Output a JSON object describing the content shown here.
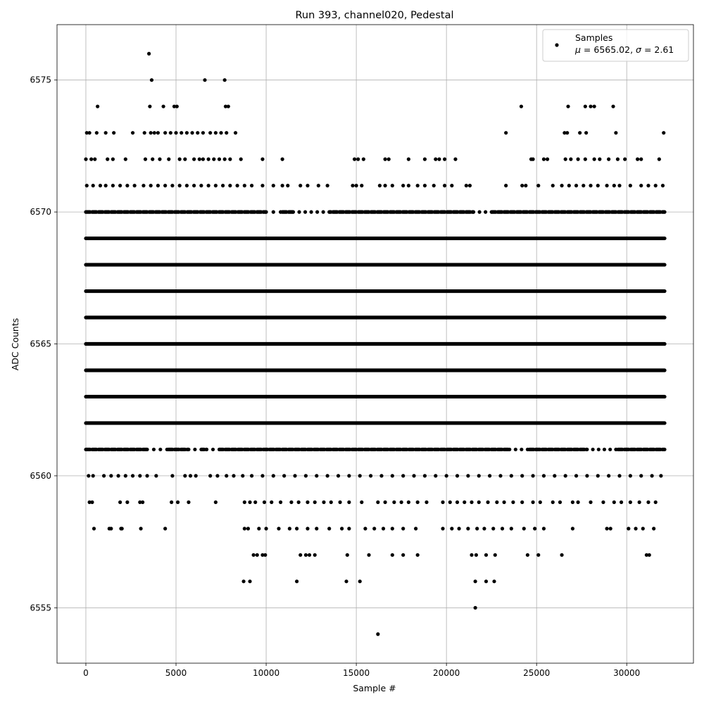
{
  "chart_data": {
    "type": "scatter",
    "title": "Run 393, channel020, Pedestal",
    "xlabel": "Sample #",
    "ylabel": "ADC Counts",
    "xlim": [
      -1600,
      33700
    ],
    "ylim": [
      6552.9,
      6577.1
    ],
    "x_ticks": [
      0,
      5000,
      10000,
      15000,
      20000,
      25000,
      30000
    ],
    "y_ticks": [
      6555,
      6560,
      6565,
      6570,
      6575
    ],
    "grid": true,
    "legend": {
      "placement": "top-right",
      "entries": [
        {
          "line1": "Samples",
          "mu_label": "μ",
          "mu_value": "6565.02",
          "sigma_label": "σ",
          "sigma_value": "2.61"
        }
      ]
    },
    "marker_color": "#000000",
    "sample_range": [
      0,
      32100
    ],
    "dense_levels": [
      {
        "y": 6562,
        "x_start": 0,
        "x_end": 32100
      },
      {
        "y": 6563,
        "x_start": 0,
        "x_end": 32100
      },
      {
        "y": 6564,
        "x_start": 0,
        "x_end": 32100
      },
      {
        "y": 6565,
        "x_start": 0,
        "x_end": 32100
      },
      {
        "y": 6566,
        "x_start": 0,
        "x_end": 32100
      },
      {
        "y": 6567,
        "x_start": 0,
        "x_end": 32100
      },
      {
        "y": 6568,
        "x_start": 0,
        "x_end": 32100
      },
      {
        "y": 6569,
        "x_start": 0,
        "x_end": 32100
      }
    ],
    "medium_levels": [
      {
        "y": 6561,
        "x_start": 0,
        "x_end": 32100,
        "gap_segments": [
          [
            3400,
            4500
          ],
          [
            5700,
            6400
          ],
          [
            6700,
            7400
          ],
          [
            23500,
            24500
          ],
          [
            27800,
            29400
          ]
        ]
      },
      {
        "y": 6570,
        "x_start": 0,
        "x_end": 32100,
        "gap_segments": [
          [
            10000,
            10800
          ],
          [
            11500,
            13500
          ],
          [
            21500,
            22500
          ]
        ]
      }
    ],
    "sparse_points": [
      [
        3500,
        6576
      ],
      [
        3650,
        6575
      ],
      [
        6600,
        6575
      ],
      [
        7700,
        6575
      ],
      [
        650,
        6574
      ],
      [
        3550,
        6574
      ],
      [
        4300,
        6574
      ],
      [
        4900,
        6574
      ],
      [
        5050,
        6574
      ],
      [
        7750,
        6574
      ],
      [
        7900,
        6574
      ],
      [
        24150,
        6574
      ],
      [
        26750,
        6574
      ],
      [
        27700,
        6574
      ],
      [
        28000,
        6574
      ],
      [
        28200,
        6574
      ],
      [
        29250,
        6574
      ],
      [
        50,
        6573
      ],
      [
        200,
        6573
      ],
      [
        600,
        6573
      ],
      [
        1100,
        6573
      ],
      [
        1550,
        6573
      ],
      [
        2600,
        6573
      ],
      [
        3250,
        6573
      ],
      [
        3600,
        6573
      ],
      [
        3800,
        6573
      ],
      [
        4000,
        6573
      ],
      [
        4400,
        6573
      ],
      [
        4700,
        6573
      ],
      [
        5000,
        6573
      ],
      [
        5300,
        6573
      ],
      [
        5600,
        6573
      ],
      [
        5900,
        6573
      ],
      [
        6200,
        6573
      ],
      [
        6500,
        6573
      ],
      [
        6900,
        6573
      ],
      [
        7200,
        6573
      ],
      [
        7500,
        6573
      ],
      [
        7800,
        6573
      ],
      [
        8300,
        6573
      ],
      [
        23300,
        6573
      ],
      [
        26550,
        6573
      ],
      [
        26700,
        6573
      ],
      [
        27400,
        6573
      ],
      [
        27750,
        6573
      ],
      [
        29400,
        6573
      ],
      [
        32050,
        6573
      ],
      [
        0,
        6572
      ],
      [
        300,
        6572
      ],
      [
        500,
        6572
      ],
      [
        1200,
        6572
      ],
      [
        1500,
        6572
      ],
      [
        2200,
        6572
      ],
      [
        3300,
        6572
      ],
      [
        3700,
        6572
      ],
      [
        4100,
        6572
      ],
      [
        4600,
        6572
      ],
      [
        5200,
        6572
      ],
      [
        5500,
        6572
      ],
      [
        6000,
        6572
      ],
      [
        6300,
        6572
      ],
      [
        6500,
        6572
      ],
      [
        6800,
        6572
      ],
      [
        7100,
        6572
      ],
      [
        7400,
        6572
      ],
      [
        7700,
        6572
      ],
      [
        8000,
        6572
      ],
      [
        8600,
        6572
      ],
      [
        9800,
        6572
      ],
      [
        10900,
        6572
      ],
      [
        14900,
        6572
      ],
      [
        15100,
        6572
      ],
      [
        15400,
        6572
      ],
      [
        16600,
        6572
      ],
      [
        16800,
        6572
      ],
      [
        17900,
        6572
      ],
      [
        18800,
        6572
      ],
      [
        19400,
        6572
      ],
      [
        19600,
        6572
      ],
      [
        19900,
        6572
      ],
      [
        20500,
        6572
      ],
      [
        24700,
        6572
      ],
      [
        24800,
        6572
      ],
      [
        25400,
        6572
      ],
      [
        25600,
        6572
      ],
      [
        26600,
        6572
      ],
      [
        26900,
        6572
      ],
      [
        27300,
        6572
      ],
      [
        27700,
        6572
      ],
      [
        28200,
        6572
      ],
      [
        28500,
        6572
      ],
      [
        29000,
        6572
      ],
      [
        29500,
        6572
      ],
      [
        29900,
        6572
      ],
      [
        30600,
        6572
      ],
      [
        30800,
        6572
      ],
      [
        31800,
        6572
      ],
      [
        50,
        6571
      ],
      [
        400,
        6571
      ],
      [
        800,
        6571
      ],
      [
        1100,
        6571
      ],
      [
        1500,
        6571
      ],
      [
        1900,
        6571
      ],
      [
        2300,
        6571
      ],
      [
        2700,
        6571
      ],
      [
        3200,
        6571
      ],
      [
        3600,
        6571
      ],
      [
        4000,
        6571
      ],
      [
        4400,
        6571
      ],
      [
        4800,
        6571
      ],
      [
        5200,
        6571
      ],
      [
        5600,
        6571
      ],
      [
        6000,
        6571
      ],
      [
        6400,
        6571
      ],
      [
        6800,
        6571
      ],
      [
        7200,
        6571
      ],
      [
        7600,
        6571
      ],
      [
        8000,
        6571
      ],
      [
        8400,
        6571
      ],
      [
        8800,
        6571
      ],
      [
        9200,
        6571
      ],
      [
        9800,
        6571
      ],
      [
        10400,
        6571
      ],
      [
        10900,
        6571
      ],
      [
        11200,
        6571
      ],
      [
        11900,
        6571
      ],
      [
        12300,
        6571
      ],
      [
        12900,
        6571
      ],
      [
        13400,
        6571
      ],
      [
        14800,
        6571
      ],
      [
        15000,
        6571
      ],
      [
        15300,
        6571
      ],
      [
        16300,
        6571
      ],
      [
        16600,
        6571
      ],
      [
        17000,
        6571
      ],
      [
        17600,
        6571
      ],
      [
        17900,
        6571
      ],
      [
        18400,
        6571
      ],
      [
        18800,
        6571
      ],
      [
        19300,
        6571
      ],
      [
        19900,
        6571
      ],
      [
        20300,
        6571
      ],
      [
        21100,
        6571
      ],
      [
        21300,
        6571
      ],
      [
        23300,
        6571
      ],
      [
        24200,
        6571
      ],
      [
        24400,
        6571
      ],
      [
        25100,
        6571
      ],
      [
        25900,
        6571
      ],
      [
        26400,
        6571
      ],
      [
        26800,
        6571
      ],
      [
        27200,
        6571
      ],
      [
        27600,
        6571
      ],
      [
        28000,
        6571
      ],
      [
        28400,
        6571
      ],
      [
        28900,
        6571
      ],
      [
        29300,
        6571
      ],
      [
        29600,
        6571
      ],
      [
        30200,
        6571
      ],
      [
        30800,
        6571
      ],
      [
        31200,
        6571
      ],
      [
        31600,
        6571
      ],
      [
        32000,
        6571
      ],
      [
        150,
        6560
      ],
      [
        400,
        6560
      ],
      [
        1000,
        6560
      ],
      [
        1400,
        6560
      ],
      [
        1800,
        6560
      ],
      [
        2200,
        6560
      ],
      [
        2600,
        6560
      ],
      [
        3000,
        6560
      ],
      [
        3400,
        6560
      ],
      [
        3900,
        6560
      ],
      [
        4800,
        6560
      ],
      [
        5500,
        6560
      ],
      [
        5800,
        6560
      ],
      [
        6100,
        6560
      ],
      [
        6900,
        6560
      ],
      [
        7300,
        6560
      ],
      [
        7800,
        6560
      ],
      [
        8200,
        6560
      ],
      [
        8700,
        6560
      ],
      [
        9200,
        6560
      ],
      [
        9800,
        6560
      ],
      [
        10400,
        6560
      ],
      [
        11000,
        6560
      ],
      [
        11600,
        6560
      ],
      [
        12200,
        6560
      ],
      [
        12800,
        6560
      ],
      [
        13400,
        6560
      ],
      [
        14000,
        6560
      ],
      [
        14600,
        6560
      ],
      [
        15200,
        6560
      ],
      [
        15800,
        6560
      ],
      [
        16400,
        6560
      ],
      [
        17000,
        6560
      ],
      [
        17600,
        6560
      ],
      [
        18200,
        6560
      ],
      [
        18800,
        6560
      ],
      [
        19400,
        6560
      ],
      [
        20000,
        6560
      ],
      [
        20600,
        6560
      ],
      [
        21200,
        6560
      ],
      [
        21800,
        6560
      ],
      [
        22400,
        6560
      ],
      [
        23000,
        6560
      ],
      [
        23600,
        6560
      ],
      [
        24200,
        6560
      ],
      [
        24800,
        6560
      ],
      [
        25400,
        6560
      ],
      [
        26000,
        6560
      ],
      [
        26600,
        6560
      ],
      [
        27200,
        6560
      ],
      [
        27800,
        6560
      ],
      [
        28400,
        6560
      ],
      [
        29000,
        6560
      ],
      [
        29600,
        6560
      ],
      [
        30200,
        6560
      ],
      [
        30800,
        6560
      ],
      [
        31400,
        6560
      ],
      [
        31900,
        6560
      ],
      [
        200,
        6559
      ],
      [
        350,
        6559
      ],
      [
        1900,
        6559
      ],
      [
        2300,
        6559
      ],
      [
        3000,
        6559
      ],
      [
        3150,
        6559
      ],
      [
        4750,
        6559
      ],
      [
        5100,
        6559
      ],
      [
        5700,
        6559
      ],
      [
        7200,
        6559
      ],
      [
        8800,
        6559
      ],
      [
        9100,
        6559
      ],
      [
        9400,
        6559
      ],
      [
        9900,
        6559
      ],
      [
        10300,
        6559
      ],
      [
        10800,
        6559
      ],
      [
        11400,
        6559
      ],
      [
        11800,
        6559
      ],
      [
        12300,
        6559
      ],
      [
        12700,
        6559
      ],
      [
        13200,
        6559
      ],
      [
        13600,
        6559
      ],
      [
        14100,
        6559
      ],
      [
        14600,
        6559
      ],
      [
        15300,
        6559
      ],
      [
        16200,
        6559
      ],
      [
        16600,
        6559
      ],
      [
        17100,
        6559
      ],
      [
        17500,
        6559
      ],
      [
        17900,
        6559
      ],
      [
        18400,
        6559
      ],
      [
        18900,
        6559
      ],
      [
        19800,
        6559
      ],
      [
        20200,
        6559
      ],
      [
        20600,
        6559
      ],
      [
        21000,
        6559
      ],
      [
        21400,
        6559
      ],
      [
        21800,
        6559
      ],
      [
        22300,
        6559
      ],
      [
        22800,
        6559
      ],
      [
        23200,
        6559
      ],
      [
        23700,
        6559
      ],
      [
        24200,
        6559
      ],
      [
        24800,
        6559
      ],
      [
        25200,
        6559
      ],
      [
        25900,
        6559
      ],
      [
        26300,
        6559
      ],
      [
        27000,
        6559
      ],
      [
        27300,
        6559
      ],
      [
        28000,
        6559
      ],
      [
        28700,
        6559
      ],
      [
        29300,
        6559
      ],
      [
        29700,
        6559
      ],
      [
        30200,
        6559
      ],
      [
        30700,
        6559
      ],
      [
        31200,
        6559
      ],
      [
        31600,
        6559
      ],
      [
        450,
        6558
      ],
      [
        1300,
        6558
      ],
      [
        1400,
        6558
      ],
      [
        1950,
        6558
      ],
      [
        2000,
        6558
      ],
      [
        3050,
        6558
      ],
      [
        4400,
        6558
      ],
      [
        8800,
        6558
      ],
      [
        9000,
        6558
      ],
      [
        9600,
        6558
      ],
      [
        10000,
        6558
      ],
      [
        10700,
        6558
      ],
      [
        11300,
        6558
      ],
      [
        11700,
        6558
      ],
      [
        12300,
        6558
      ],
      [
        12800,
        6558
      ],
      [
        13500,
        6558
      ],
      [
        14200,
        6558
      ],
      [
        14600,
        6558
      ],
      [
        15500,
        6558
      ],
      [
        16000,
        6558
      ],
      [
        16500,
        6558
      ],
      [
        17000,
        6558
      ],
      [
        17600,
        6558
      ],
      [
        18300,
        6558
      ],
      [
        19800,
        6558
      ],
      [
        20300,
        6558
      ],
      [
        20700,
        6558
      ],
      [
        21200,
        6558
      ],
      [
        21700,
        6558
      ],
      [
        22100,
        6558
      ],
      [
        22600,
        6558
      ],
      [
        23100,
        6558
      ],
      [
        23600,
        6558
      ],
      [
        24300,
        6558
      ],
      [
        24900,
        6558
      ],
      [
        25400,
        6558
      ],
      [
        27000,
        6558
      ],
      [
        28900,
        6558
      ],
      [
        29100,
        6558
      ],
      [
        30100,
        6558
      ],
      [
        30500,
        6558
      ],
      [
        30900,
        6558
      ],
      [
        31500,
        6558
      ],
      [
        9300,
        6557
      ],
      [
        9500,
        6557
      ],
      [
        9800,
        6557
      ],
      [
        9950,
        6557
      ],
      [
        11900,
        6557
      ],
      [
        12200,
        6557
      ],
      [
        12400,
        6557
      ],
      [
        12700,
        6557
      ],
      [
        14500,
        6557
      ],
      [
        15700,
        6557
      ],
      [
        17000,
        6557
      ],
      [
        17600,
        6557
      ],
      [
        18400,
        6557
      ],
      [
        21400,
        6557
      ],
      [
        21650,
        6557
      ],
      [
        22200,
        6557
      ],
      [
        22700,
        6557
      ],
      [
        24500,
        6557
      ],
      [
        25100,
        6557
      ],
      [
        26400,
        6557
      ],
      [
        31100,
        6557
      ],
      [
        31250,
        6557
      ],
      [
        8750,
        6556
      ],
      [
        9100,
        6556
      ],
      [
        11700,
        6556
      ],
      [
        14450,
        6556
      ],
      [
        15200,
        6556
      ],
      [
        21600,
        6556
      ],
      [
        22200,
        6556
      ],
      [
        22650,
        6556
      ],
      [
        21600,
        6555
      ],
      [
        16200,
        6554
      ]
    ]
  }
}
